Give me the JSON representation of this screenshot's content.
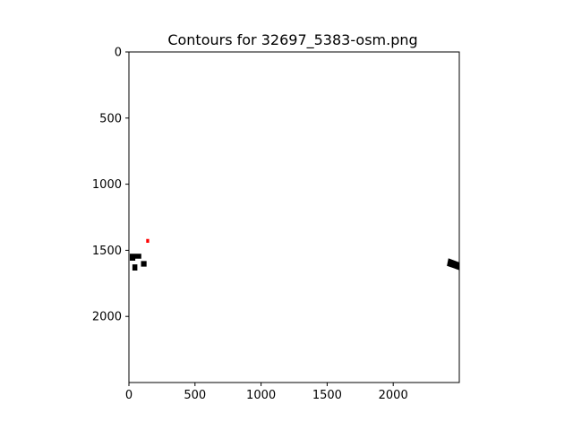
{
  "chart_data": {
    "type": "scatter",
    "title": "Contours for 32697_5383-osm.png",
    "xlabel": "",
    "ylabel": "",
    "xlim": [
      0,
      2500
    ],
    "ylim": [
      2500,
      0
    ],
    "y_inverted": true,
    "grid": false,
    "x_ticks": [
      0,
      500,
      1000,
      1500,
      2000
    ],
    "y_ticks": [
      0,
      500,
      1000,
      1500,
      2000
    ],
    "contours": [
      {
        "color": "#ff0000",
        "points": [
          [
            134,
            1418
          ],
          [
            150,
            1418
          ],
          [
            150,
            1440
          ],
          [
            134,
            1440
          ]
        ]
      },
      {
        "color": "#000000",
        "points": [
          [
            10,
            1530
          ],
          [
            90,
            1530
          ],
          [
            90,
            1560
          ],
          [
            45,
            1560
          ],
          [
            45,
            1575
          ],
          [
            10,
            1575
          ]
        ]
      },
      {
        "color": "#000000",
        "points": [
          [
            30,
            1610
          ],
          [
            60,
            1610
          ],
          [
            60,
            1650
          ],
          [
            30,
            1650
          ]
        ]
      },
      {
        "color": "#000000",
        "points": [
          [
            95,
            1585
          ],
          [
            130,
            1585
          ],
          [
            130,
            1620
          ],
          [
            95,
            1620
          ]
        ]
      },
      {
        "color": "#000000",
        "points": [
          [
            2420,
            1565
          ],
          [
            2500,
            1595
          ],
          [
            2495,
            1645
          ],
          [
            2410,
            1615
          ]
        ]
      }
    ]
  }
}
